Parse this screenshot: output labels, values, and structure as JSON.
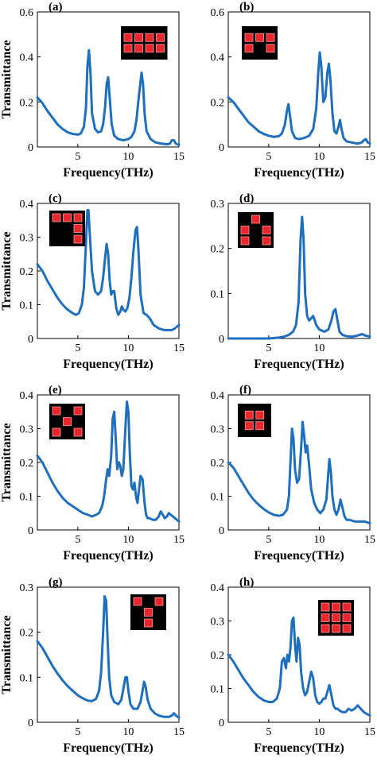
{
  "chart_data": [
    {
      "panel": "(a)",
      "type": "line",
      "xlabel": "Frequency(THz)",
      "ylabel": "Transmittance",
      "xlim": [
        1,
        15
      ],
      "ylim": [
        0,
        0.6
      ],
      "xticks": [
        5,
        10,
        15
      ],
      "yticks": [
        0,
        0.2,
        0.4,
        0.6
      ],
      "inset_pattern": [
        "1111",
        "1111"
      ],
      "series": [
        {
          "color": "#1f6fbf",
          "x": [
            1,
            1.5,
            2,
            2.5,
            3,
            3.5,
            4,
            4.5,
            5,
            5.3,
            5.6,
            5.8,
            5.95,
            6.1,
            6.25,
            6.4,
            6.7,
            7,
            7.3,
            7.5,
            7.7,
            7.85,
            8,
            8.15,
            8.35,
            8.6,
            9,
            9.5,
            10,
            10.3,
            10.6,
            10.8,
            10.95,
            11.1,
            11.3,
            11.45,
            11.6,
            11.8,
            12.2,
            12.7,
            13.3,
            13.8,
            14.1,
            14.3,
            14.5,
            14.7,
            15
          ],
          "y": [
            0.22,
            0.195,
            0.16,
            0.13,
            0.1,
            0.08,
            0.065,
            0.058,
            0.055,
            0.06,
            0.09,
            0.17,
            0.36,
            0.43,
            0.33,
            0.15,
            0.08,
            0.065,
            0.07,
            0.1,
            0.18,
            0.28,
            0.31,
            0.22,
            0.1,
            0.05,
            0.035,
            0.03,
            0.035,
            0.045,
            0.07,
            0.12,
            0.19,
            0.25,
            0.33,
            0.28,
            0.15,
            0.07,
            0.035,
            0.02,
            0.015,
            0.012,
            0.015,
            0.03,
            0.03,
            0.015,
            0.01
          ]
        }
      ]
    },
    {
      "panel": "(b)",
      "type": "line",
      "xlabel": "Frequency(THz)",
      "ylabel": "",
      "xlim": [
        1,
        15
      ],
      "ylim": [
        0,
        0.6
      ],
      "xticks": [
        5,
        10,
        15
      ],
      "yticks": [
        0,
        0.2,
        0.4,
        0.6
      ],
      "inset_pattern": [
        "111",
        "101"
      ],
      "series": [
        {
          "color": "#1f6fbf",
          "x": [
            1,
            1.5,
            2,
            2.5,
            3,
            3.5,
            4,
            4.5,
            5,
            5.5,
            6,
            6.3,
            6.6,
            6.8,
            6.95,
            7.1,
            7.3,
            7.6,
            8,
            8.5,
            9,
            9.4,
            9.7,
            9.9,
            10.05,
            10.2,
            10.4,
            10.6,
            10.8,
            10.95,
            11.1,
            11.3,
            11.5,
            11.7,
            11.9,
            12.05,
            12.2,
            12.4,
            12.7,
            13.2,
            13.8,
            14.2,
            14.4,
            14.6,
            14.8,
            15
          ],
          "y": [
            0.22,
            0.2,
            0.17,
            0.14,
            0.11,
            0.09,
            0.07,
            0.058,
            0.05,
            0.045,
            0.048,
            0.06,
            0.1,
            0.16,
            0.19,
            0.14,
            0.07,
            0.04,
            0.035,
            0.04,
            0.05,
            0.08,
            0.17,
            0.33,
            0.42,
            0.36,
            0.2,
            0.22,
            0.33,
            0.37,
            0.3,
            0.15,
            0.07,
            0.06,
            0.09,
            0.12,
            0.08,
            0.04,
            0.025,
            0.02,
            0.015,
            0.02,
            0.03,
            0.035,
            0.02,
            0.015
          ]
        }
      ]
    },
    {
      "panel": "(c)",
      "type": "line",
      "xlabel": "Frequency(THz)",
      "ylabel": "Transmittance",
      "xlim": [
        1,
        15
      ],
      "ylim": [
        0,
        0.4
      ],
      "xticks": [
        5,
        10,
        15
      ],
      "yticks": [
        0,
        0.1,
        0.2,
        0.3,
        0.4
      ],
      "inset_pattern": [
        "111",
        "001",
        "001"
      ],
      "series": [
        {
          "color": "#1f6fbf",
          "x": [
            1,
            1.5,
            2,
            2.5,
            3,
            3.5,
            4,
            4.5,
            4.8,
            5.1,
            5.4,
            5.6,
            5.8,
            5.95,
            6.05,
            6.2,
            6.4,
            6.7,
            7,
            7.3,
            7.5,
            7.7,
            7.85,
            8,
            8.15,
            8.3,
            8.45,
            8.6,
            8.8,
            9,
            9.2,
            9.35,
            9.5,
            9.7,
            9.9,
            10.1,
            10.3,
            10.5,
            10.7,
            10.85,
            11,
            11.2,
            11.5,
            11.8,
            12.1,
            12.5,
            13,
            13.5,
            14,
            14.3,
            14.6,
            14.8,
            15
          ],
          "y": [
            0.22,
            0.2,
            0.17,
            0.145,
            0.12,
            0.1,
            0.085,
            0.075,
            0.07,
            0.075,
            0.1,
            0.15,
            0.28,
            0.38,
            0.38,
            0.3,
            0.2,
            0.14,
            0.13,
            0.14,
            0.18,
            0.24,
            0.28,
            0.25,
            0.17,
            0.13,
            0.14,
            0.14,
            0.09,
            0.07,
            0.08,
            0.095,
            0.085,
            0.08,
            0.09,
            0.12,
            0.18,
            0.26,
            0.32,
            0.33,
            0.26,
            0.13,
            0.075,
            0.07,
            0.06,
            0.04,
            0.03,
            0.025,
            0.025,
            0.025,
            0.03,
            0.035,
            0.04
          ]
        }
      ]
    },
    {
      "panel": "(d)",
      "type": "line",
      "xlabel": "Frequency(THz)",
      "ylabel": "",
      "xlim": [
        1,
        15
      ],
      "ylim": [
        0,
        0.3
      ],
      "xticks": [
        5,
        10
      ],
      "yticks": [
        0,
        0.1,
        0.2,
        0.3
      ],
      "inset_pattern": [
        "010",
        "101",
        "101"
      ],
      "series": [
        {
          "color": "#1f6fbf",
          "x": [
            1,
            2,
            3,
            4,
            5,
            6,
            6.5,
            7,
            7.4,
            7.7,
            7.95,
            8.15,
            8.3,
            8.45,
            8.6,
            8.8,
            9,
            9.2,
            9.4,
            9.7,
            10,
            10.5,
            10.9,
            11.2,
            11.4,
            11.6,
            11.8,
            12,
            12.3,
            12.7,
            13.2,
            13.7,
            14,
            14.2,
            14.5,
            15
          ],
          "y": [
            0,
            0,
            0,
            0,
            0,
            0.002,
            0.004,
            0.008,
            0.015,
            0.03,
            0.08,
            0.22,
            0.27,
            0.22,
            0.1,
            0.05,
            0.04,
            0.045,
            0.05,
            0.03,
            0.02,
            0.015,
            0.02,
            0.04,
            0.06,
            0.065,
            0.04,
            0.015,
            0.008,
            0.005,
            0.004,
            0.006,
            0.008,
            0.01,
            0.007,
            0.004
          ]
        }
      ]
    },
    {
      "panel": "(e)",
      "type": "line",
      "xlabel": "Frequency(THz)",
      "ylabel": "Transmittance",
      "xlim": [
        1,
        15
      ],
      "ylim": [
        0,
        0.4
      ],
      "xticks": [
        5,
        10,
        15
      ],
      "yticks": [
        0,
        0.1,
        0.2,
        0.3,
        0.4
      ],
      "inset_pattern": [
        "101",
        "010",
        "101"
      ],
      "series": [
        {
          "color": "#1f6fbf",
          "x": [
            1,
            1.5,
            2,
            2.5,
            3,
            3.5,
            4,
            4.5,
            5,
            5.5,
            6,
            6.4,
            6.8,
            7.1,
            7.4,
            7.6,
            7.8,
            7.95,
            8.1,
            8.3,
            8.45,
            8.6,
            8.75,
            8.9,
            9.05,
            9.2,
            9.35,
            9.5,
            9.7,
            9.85,
            10,
            10.15,
            10.3,
            10.45,
            10.6,
            10.75,
            10.9,
            11.05,
            11.2,
            11.4,
            11.6,
            11.75,
            11.9,
            12.1,
            12.4,
            12.7,
            13,
            13.2,
            13.4,
            13.6,
            13.8,
            14,
            14.2,
            14.4,
            14.6,
            14.8,
            15
          ],
          "y": [
            0.22,
            0.2,
            0.17,
            0.14,
            0.115,
            0.095,
            0.08,
            0.07,
            0.06,
            0.05,
            0.045,
            0.04,
            0.045,
            0.05,
            0.07,
            0.1,
            0.15,
            0.18,
            0.16,
            0.22,
            0.33,
            0.35,
            0.27,
            0.18,
            0.2,
            0.19,
            0.16,
            0.18,
            0.3,
            0.38,
            0.35,
            0.22,
            0.13,
            0.12,
            0.14,
            0.1,
            0.08,
            0.12,
            0.16,
            0.15,
            0.08,
            0.045,
            0.035,
            0.035,
            0.03,
            0.03,
            0.04,
            0.055,
            0.045,
            0.035,
            0.04,
            0.05,
            0.045,
            0.04,
            0.035,
            0.03,
            0.025
          ]
        }
      ]
    },
    {
      "panel": "(f)",
      "type": "line",
      "xlabel": "Frequency(THz)",
      "ylabel": "",
      "xlim": [
        1,
        15
      ],
      "ylim": [
        0,
        0.4
      ],
      "xticks": [
        5,
        10,
        15
      ],
      "yticks": [
        0,
        0.1,
        0.2,
        0.3,
        0.4
      ],
      "inset_pattern": [
        "11",
        "11"
      ],
      "series": [
        {
          "color": "#1f6fbf",
          "x": [
            1,
            1.5,
            2,
            2.5,
            3,
            3.5,
            4,
            4.5,
            5,
            5.5,
            6,
            6.4,
            6.8,
            7,
            7.15,
            7.3,
            7.45,
            7.6,
            7.8,
            8,
            8.2,
            8.35,
            8.5,
            8.65,
            8.8,
            9,
            9.2,
            9.5,
            9.8,
            10.1,
            10.4,
            10.7,
            10.85,
            11,
            11.15,
            11.3,
            11.5,
            11.7,
            11.9,
            12.1,
            12.3,
            12.5,
            12.7,
            13,
            13.5,
            14,
            14.5,
            15
          ],
          "y": [
            0.2,
            0.185,
            0.16,
            0.135,
            0.11,
            0.09,
            0.075,
            0.062,
            0.052,
            0.045,
            0.042,
            0.045,
            0.06,
            0.1,
            0.2,
            0.3,
            0.27,
            0.18,
            0.14,
            0.15,
            0.24,
            0.32,
            0.28,
            0.23,
            0.25,
            0.19,
            0.12,
            0.08,
            0.06,
            0.05,
            0.06,
            0.09,
            0.15,
            0.21,
            0.17,
            0.1,
            0.06,
            0.045,
            0.06,
            0.09,
            0.065,
            0.04,
            0.03,
            0.03,
            0.025,
            0.025,
            0.025,
            0.02
          ]
        }
      ]
    },
    {
      "panel": "(g)",
      "type": "line",
      "xlabel": "Frequency(THz)",
      "ylabel": "Transmittance",
      "xlim": [
        1,
        15
      ],
      "ylim": [
        0,
        0.3
      ],
      "xticks": [
        5,
        10,
        15
      ],
      "yticks": [
        0,
        0.1,
        0.2,
        0.3
      ],
      "inset_pattern": [
        "101",
        "010",
        "010"
      ],
      "series": [
        {
          "color": "#1f6fbf",
          "x": [
            1,
            1.5,
            2,
            2.5,
            3,
            3.5,
            4,
            4.5,
            5,
            5.5,
            6,
            6.4,
            6.8,
            7.1,
            7.3,
            7.5,
            7.65,
            7.8,
            7.95,
            8.1,
            8.3,
            8.6,
            9,
            9.3,
            9.55,
            9.7,
            9.85,
            10,
            10.2,
            10.5,
            10.9,
            11.2,
            11.4,
            11.55,
            11.7,
            11.9,
            12.2,
            12.6,
            13,
            13.5,
            14,
            14.3,
            14.5,
            14.7,
            15
          ],
          "y": [
            0.18,
            0.165,
            0.145,
            0.125,
            0.108,
            0.093,
            0.08,
            0.07,
            0.06,
            0.053,
            0.048,
            0.047,
            0.052,
            0.07,
            0.11,
            0.2,
            0.28,
            0.27,
            0.18,
            0.1,
            0.06,
            0.045,
            0.04,
            0.05,
            0.08,
            0.1,
            0.1,
            0.07,
            0.04,
            0.03,
            0.03,
            0.045,
            0.07,
            0.09,
            0.08,
            0.05,
            0.03,
            0.02,
            0.015,
            0.012,
            0.012,
            0.015,
            0.02,
            0.015,
            0.01
          ]
        }
      ]
    },
    {
      "panel": "(h)",
      "type": "line",
      "xlabel": "Frequency(THz)",
      "ylabel": "",
      "xlim": [
        1,
        15
      ],
      "ylim": [
        0,
        0.4
      ],
      "xticks": [
        5,
        10,
        15
      ],
      "yticks": [
        0,
        0.1,
        0.2,
        0.3,
        0.4
      ],
      "inset_pattern": [
        "111",
        "111",
        "111"
      ],
      "series": [
        {
          "color": "#1f6fbf",
          "x": [
            1,
            1.5,
            2,
            2.5,
            3,
            3.5,
            4,
            4.5,
            5,
            5.4,
            5.8,
            6.1,
            6.3,
            6.5,
            6.7,
            6.85,
            7,
            7.15,
            7.3,
            7.45,
            7.6,
            7.75,
            7.9,
            8.05,
            8.2,
            8.4,
            8.6,
            8.8,
            9,
            9.2,
            9.4,
            9.6,
            9.8,
            10,
            10.2,
            10.4,
            10.6,
            10.8,
            11,
            11.2,
            11.4,
            11.6,
            11.8,
            12,
            12.3,
            12.6,
            12.9,
            13.2,
            13.5,
            13.8,
            14.1,
            14.4,
            14.7,
            15
          ],
          "y": [
            0.2,
            0.18,
            0.155,
            0.13,
            0.11,
            0.09,
            0.075,
            0.065,
            0.06,
            0.06,
            0.07,
            0.1,
            0.18,
            0.19,
            0.16,
            0.2,
            0.18,
            0.22,
            0.3,
            0.31,
            0.23,
            0.18,
            0.25,
            0.23,
            0.15,
            0.1,
            0.08,
            0.09,
            0.12,
            0.15,
            0.13,
            0.08,
            0.06,
            0.055,
            0.06,
            0.07,
            0.07,
            0.09,
            0.11,
            0.08,
            0.05,
            0.04,
            0.04,
            0.035,
            0.03,
            0.03,
            0.04,
            0.035,
            0.04,
            0.05,
            0.04,
            0.03,
            0.025,
            0.02
          ]
        }
      ]
    }
  ]
}
